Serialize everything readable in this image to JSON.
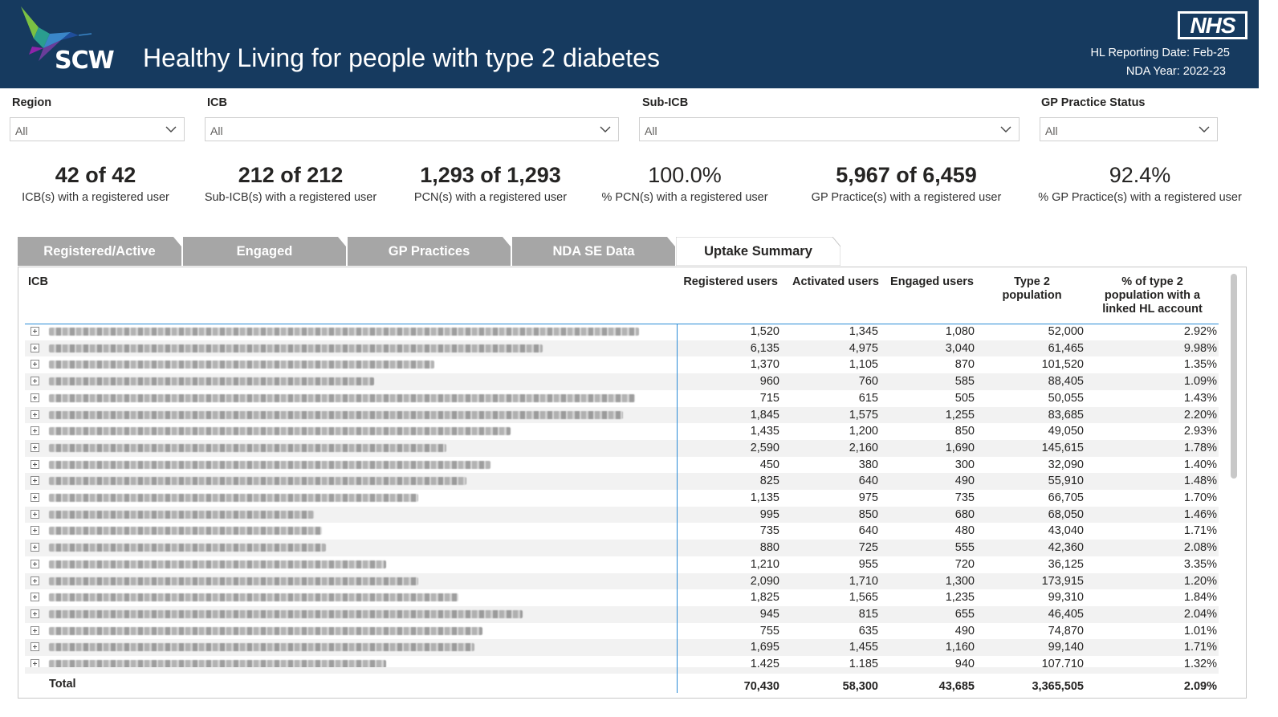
{
  "header": {
    "brand": "SCW",
    "title": "Healthy Living for people with type 2 diabetes",
    "nhs_logo": "NHS",
    "reporting_date": "HL Reporting Date: Feb-25",
    "nda_year": "NDA Year: 2022-23",
    "colors": {
      "background": "#163a5f",
      "text": "#ffffff"
    }
  },
  "slicers": [
    {
      "label": "Region",
      "value": "All"
    },
    {
      "label": "ICB",
      "value": "All"
    },
    {
      "label": "Sub-ICB",
      "value": "All"
    },
    {
      "label": "GP Practice Status",
      "value": "All"
    }
  ],
  "kpis": [
    {
      "value": "42 of 42",
      "label": "ICB(s) with a registered user"
    },
    {
      "value": "212 of 212",
      "label": "Sub-ICB(s) with a registered user"
    },
    {
      "value": "1,293 of 1,293",
      "label": "PCN(s) with a registered user"
    },
    {
      "value": "100.0%",
      "label": "% PCN(s) with a registered user"
    },
    {
      "value": "5,967 of 6,459",
      "label": "GP Practice(s) with a registered user"
    },
    {
      "value": "92.4%",
      "label": "% GP Practice(s) with a registered user"
    }
  ],
  "tabs": [
    {
      "label": "Registered/Active",
      "active": false
    },
    {
      "label": "Engaged",
      "active": false
    },
    {
      "label": "GP Practices",
      "active": false
    },
    {
      "label": "NDA SE Data",
      "active": false
    },
    {
      "label": "Uptake Summary",
      "active": true
    }
  ],
  "table": {
    "columns": {
      "icb": "ICB",
      "registered": "Registered users",
      "activated": "Activated users",
      "engaged": "Engaged users",
      "type2_l1": "Type 2",
      "type2_l2": "population",
      "pct_l1": "% of type 2",
      "pct_l2": "population with a",
      "pct_l3": "linked HL account"
    },
    "rows": [
      {
        "registered": "1,520",
        "activated": "1,345",
        "engaged": "1,080",
        "type2": "52,000",
        "pct": "2.92%"
      },
      {
        "registered": "6,135",
        "activated": "4,975",
        "engaged": "3,040",
        "type2": "61,465",
        "pct": "9.98%"
      },
      {
        "registered": "1,370",
        "activated": "1,105",
        "engaged": "870",
        "type2": "101,520",
        "pct": "1.35%"
      },
      {
        "registered": "960",
        "activated": "760",
        "engaged": "585",
        "type2": "88,405",
        "pct": "1.09%"
      },
      {
        "registered": "715",
        "activated": "615",
        "engaged": "505",
        "type2": "50,055",
        "pct": "1.43%"
      },
      {
        "registered": "1,845",
        "activated": "1,575",
        "engaged": "1,255",
        "type2": "83,685",
        "pct": "2.20%"
      },
      {
        "registered": "1,435",
        "activated": "1,200",
        "engaged": "850",
        "type2": "49,050",
        "pct": "2.93%"
      },
      {
        "registered": "2,590",
        "activated": "2,160",
        "engaged": "1,690",
        "type2": "145,615",
        "pct": "1.78%"
      },
      {
        "registered": "450",
        "activated": "380",
        "engaged": "300",
        "type2": "32,090",
        "pct": "1.40%"
      },
      {
        "registered": "825",
        "activated": "640",
        "engaged": "490",
        "type2": "55,910",
        "pct": "1.48%"
      },
      {
        "registered": "1,135",
        "activated": "975",
        "engaged": "735",
        "type2": "66,705",
        "pct": "1.70%"
      },
      {
        "registered": "995",
        "activated": "850",
        "engaged": "680",
        "type2": "68,050",
        "pct": "1.46%"
      },
      {
        "registered": "735",
        "activated": "640",
        "engaged": "480",
        "type2": "43,040",
        "pct": "1.71%"
      },
      {
        "registered": "880",
        "activated": "725",
        "engaged": "555",
        "type2": "42,360",
        "pct": "2.08%"
      },
      {
        "registered": "1,210",
        "activated": "955",
        "engaged": "720",
        "type2": "36,125",
        "pct": "3.35%"
      },
      {
        "registered": "2,090",
        "activated": "1,710",
        "engaged": "1,300",
        "type2": "173,915",
        "pct": "1.20%"
      },
      {
        "registered": "1,825",
        "activated": "1,565",
        "engaged": "1,235",
        "type2": "99,310",
        "pct": "1.84%"
      },
      {
        "registered": "945",
        "activated": "815",
        "engaged": "655",
        "type2": "46,405",
        "pct": "2.04%"
      },
      {
        "registered": "755",
        "activated": "635",
        "engaged": "490",
        "type2": "74,870",
        "pct": "1.01%"
      },
      {
        "registered": "1,695",
        "activated": "1,455",
        "engaged": "1,160",
        "type2": "99,140",
        "pct": "1.71%"
      },
      {
        "registered": "1,425",
        "activated": "1,185",
        "engaged": "940",
        "type2": "107,710",
        "pct": "1.32%"
      }
    ],
    "total": {
      "label": "Total",
      "registered": "70,430",
      "activated": "58,300",
      "engaged": "43,685",
      "type2": "3,365,505",
      "pct": "2.09%"
    }
  }
}
